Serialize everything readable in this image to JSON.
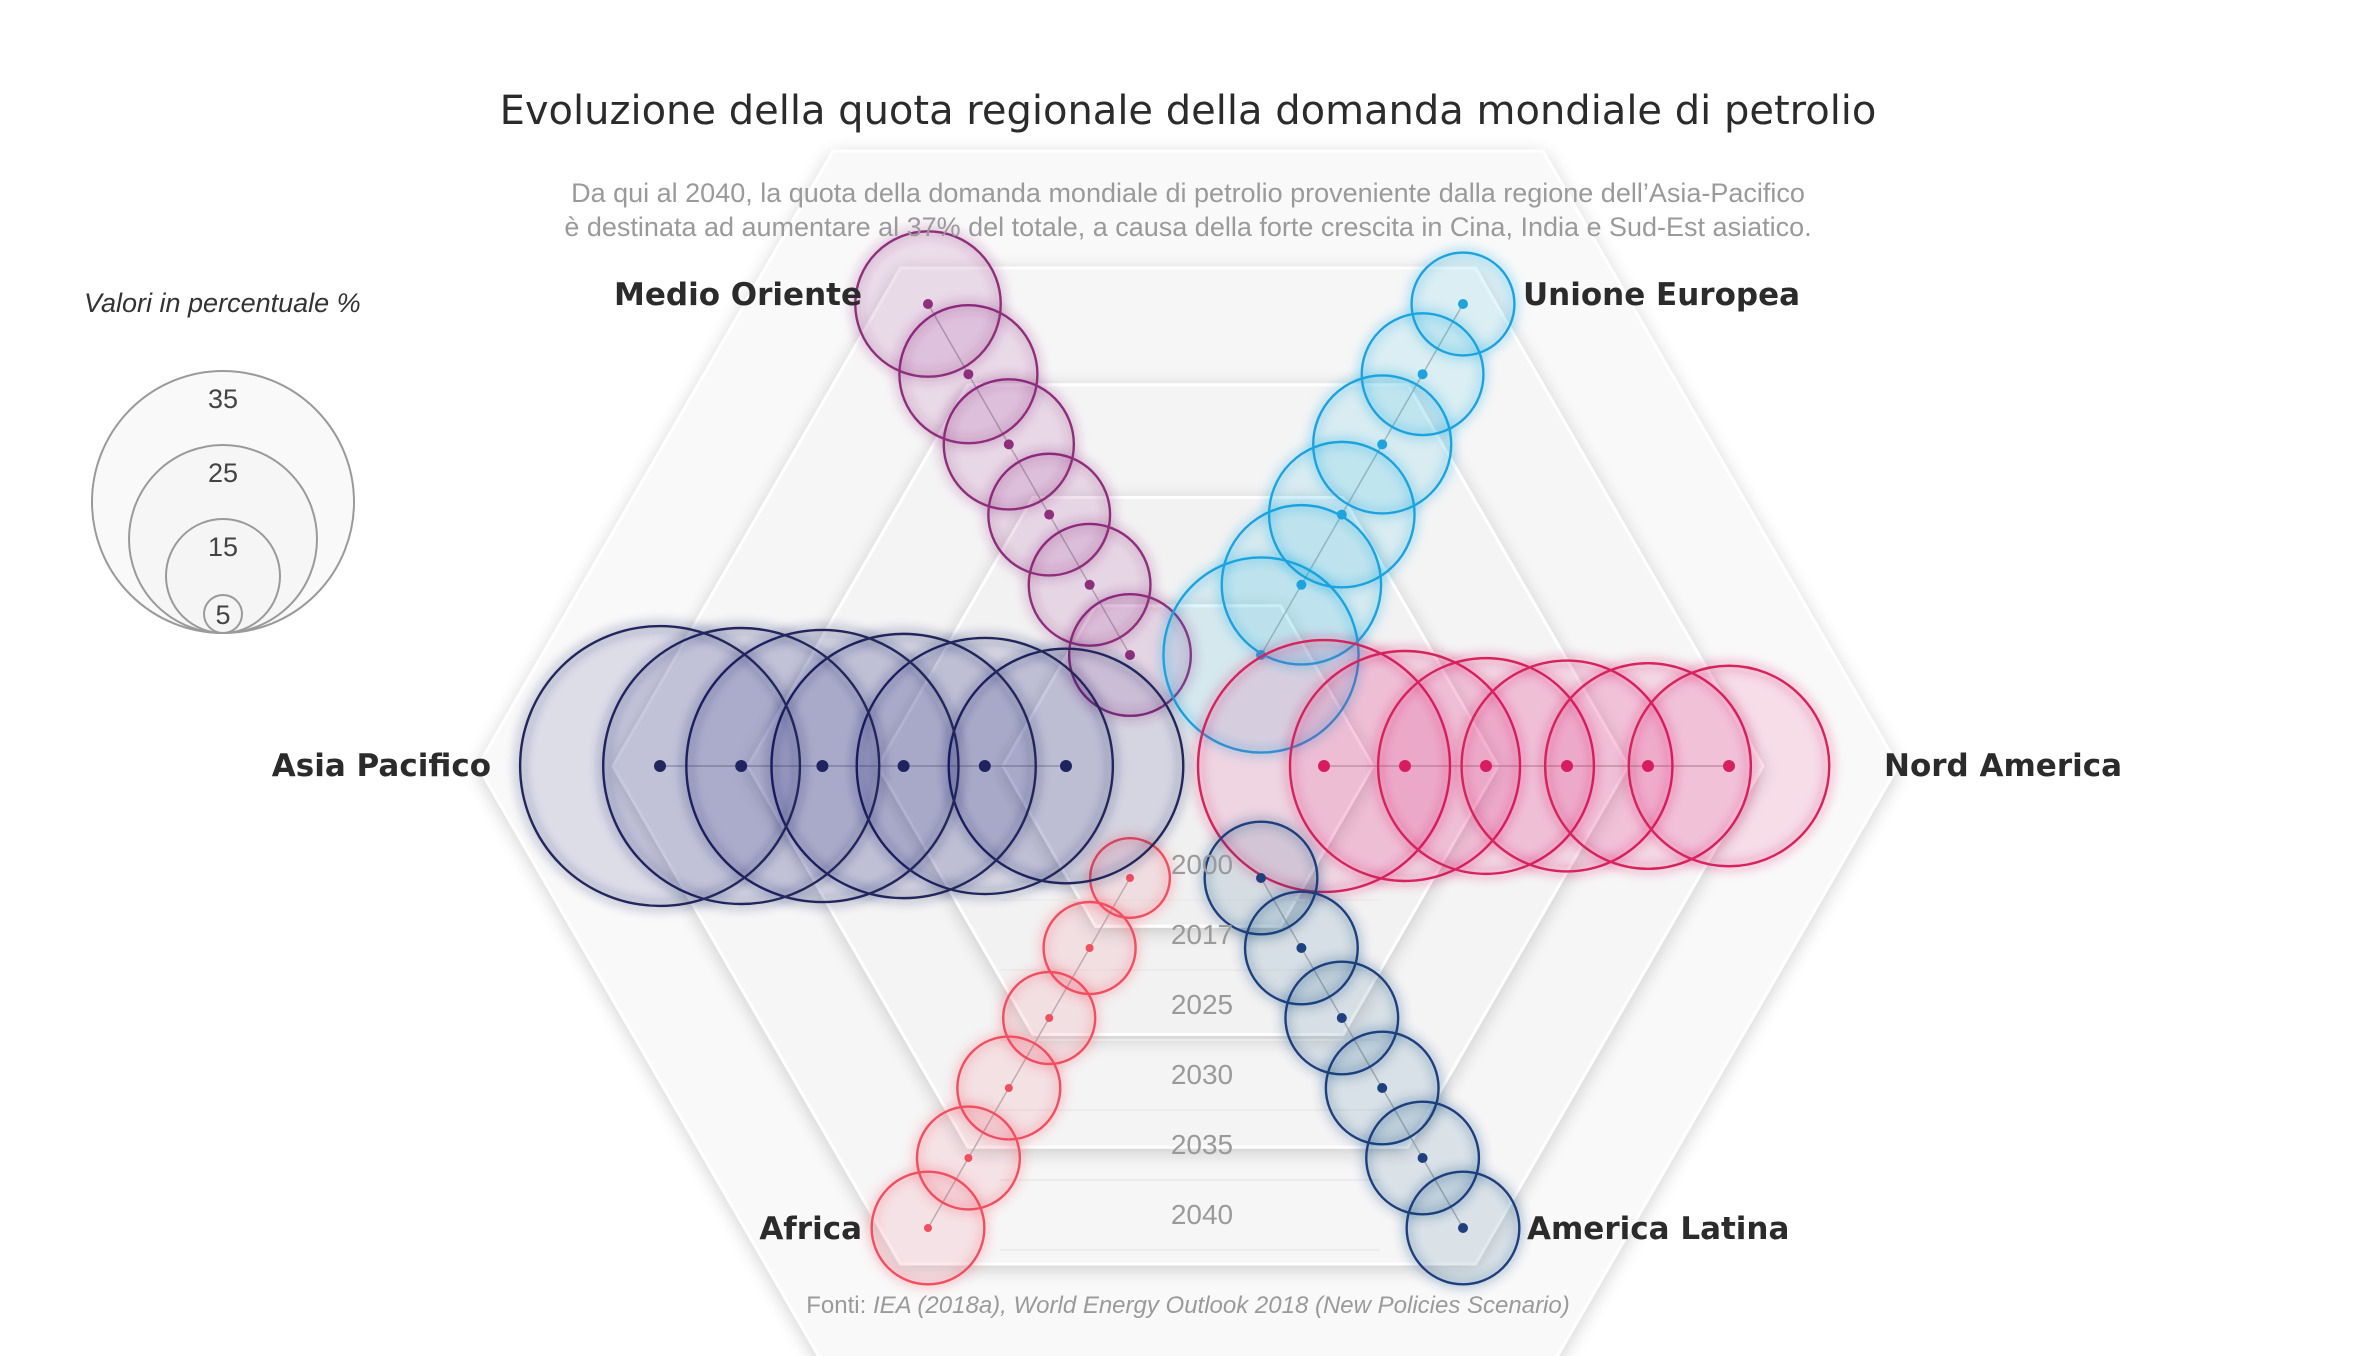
{
  "title": "Evoluzione della quota regionale della domanda mondiale di petrolio",
  "subtitle_lines": [
    "Da qui al 2040, la quota della domanda mondiale di petrolio proveniente dalla regione dell’Asia-Pacifico",
    "è destinata ad aumentare al 37% del totale, a causa della forte crescita in Cina, India e Sud-Est asiatico."
  ],
  "legend": {
    "title": "Valori in percentuale %",
    "values": [
      35,
      25,
      15,
      5
    ]
  },
  "source": {
    "prefix": "Fonti: ",
    "text": "IEA (2018a), World Energy Outlook 2018 (New Policies Scenario)"
  },
  "chart_data": {
    "type": "radial bubble",
    "years": [
      "2000",
      "2017",
      "2025",
      "2030",
      "2035",
      "2040"
    ],
    "series": [
      {
        "name": "Medio Oriente",
        "color": "#8e2f7b",
        "values": [
          7,
          7,
          7,
          8,
          9,
          10
        ]
      },
      {
        "name": "Unione Europea",
        "color": "#1fa3de",
        "values": [
          18,
          12,
          10,
          9,
          7,
          5
        ]
      },
      {
        "name": "Nord America",
        "color": "#d6215f",
        "values": [
          30,
          25,
          22,
          21,
          20,
          19
        ]
      },
      {
        "name": "America Latina",
        "color": "#1f3f7d",
        "values": [
          6,
          6,
          6,
          6,
          6,
          6
        ]
      },
      {
        "name": "Africa",
        "color": "#ef4f5f",
        "values": [
          3,
          4,
          4,
          5,
          5,
          6
        ]
      },
      {
        "name": "Asia Pacifico",
        "color": "#23275f",
        "values": [
          26,
          31,
          33,
          35,
          36,
          37
        ]
      }
    ]
  }
}
